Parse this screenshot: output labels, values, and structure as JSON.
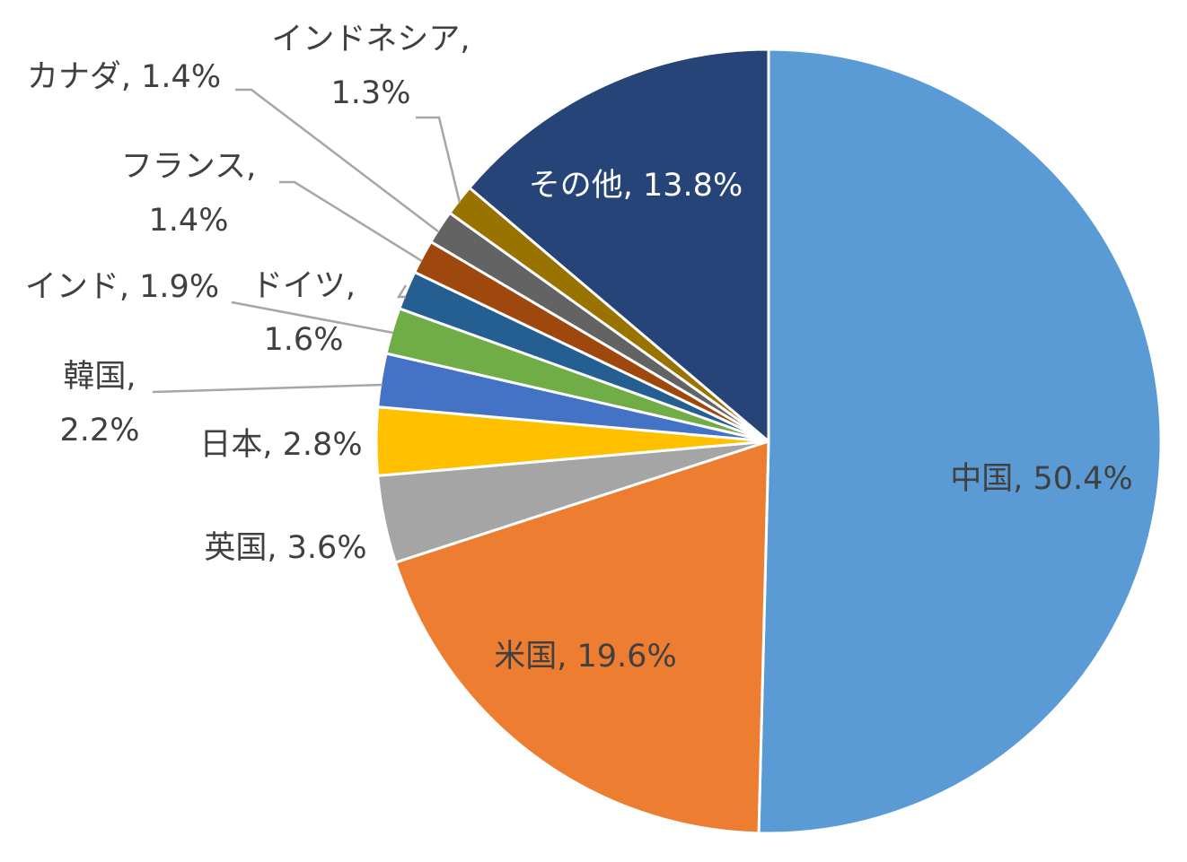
{
  "chart_data": {
    "type": "pie",
    "title": "",
    "start": "12 o'clock",
    "direction": "clockwise",
    "slices": [
      {
        "label": "中国",
        "value": 50.4,
        "text": "中国, 50.4%",
        "color": "#5b9bd5"
      },
      {
        "label": "米国",
        "value": 19.6,
        "text": "米国, 19.6%",
        "color": "#ed7d31"
      },
      {
        "label": "英国",
        "value": 3.6,
        "text": "英国, 3.6%",
        "color": "#a5a5a5"
      },
      {
        "label": "日本",
        "value": 2.8,
        "text": "日本, 2.8%",
        "color": "#ffc000"
      },
      {
        "label": "韓国",
        "value": 2.2,
        "text": [
          "韓国,",
          "2.2%"
        ],
        "color": "#4472c4"
      },
      {
        "label": "インド",
        "value": 1.9,
        "text": "インド, 1.9%",
        "color": "#70ad47"
      },
      {
        "label": "ドイツ",
        "value": 1.6,
        "text": [
          "ドイツ,",
          "1.6%"
        ],
        "color": "#255e91"
      },
      {
        "label": "フランス",
        "value": 1.4,
        "text": [
          "フランス,",
          "1.4%"
        ],
        "color": "#9e480e"
      },
      {
        "label": "カナダ",
        "value": 1.4,
        "text": "カナダ, 1.4%",
        "color": "#636363"
      },
      {
        "label": "インドネシア",
        "value": 1.3,
        "text": [
          "インドネシア,",
          "1.3%"
        ],
        "color": "#997300"
      },
      {
        "label": "その他",
        "value": 13.8,
        "text": "その他, 13.8%",
        "color": "#264478"
      }
    ]
  }
}
